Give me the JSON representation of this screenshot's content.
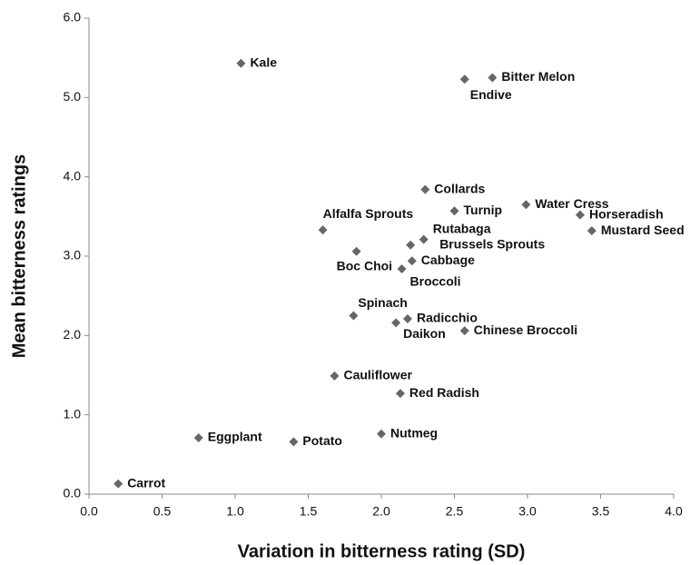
{
  "chart_data": {
    "type": "scatter",
    "xlabel": "Variation in bitterness rating (SD)",
    "ylabel": "Mean bitterness ratings",
    "labels": [
      "Kale",
      "Endive",
      "Bitter Melon",
      "Collards",
      "Water Cress",
      "Turnip",
      "Horseradish",
      "Alfalfa Sprouts",
      "Mustard Seed",
      "Rutabaga",
      "Brussels Sprouts",
      "Boc Choi",
      "Cabbage",
      "Broccoli",
      "Spinach",
      "Radicchio",
      "Daikon",
      "Chinese Broccoli",
      "Cauliflower",
      "Red Radish",
      "Nutmeg",
      "Eggplant",
      "Potato",
      "Carrot"
    ],
    "x": [
      1.04,
      2.57,
      2.76,
      2.3,
      2.99,
      2.5,
      3.36,
      1.6,
      3.44,
      2.29,
      2.2,
      1.83,
      2.21,
      2.14,
      1.81,
      2.18,
      2.1,
      2.57,
      1.68,
      2.13,
      2.0,
      0.75,
      1.4,
      0.2
    ],
    "values": [
      5.43,
      5.23,
      5.25,
      3.84,
      3.65,
      3.57,
      3.52,
      3.33,
      3.32,
      3.21,
      3.14,
      3.06,
      2.94,
      2.84,
      2.25,
      2.21,
      2.16,
      2.06,
      1.49,
      1.27,
      0.76,
      0.71,
      0.66,
      0.13
    ],
    "color": "#666666",
    "xlim": [
      0,
      4
    ],
    "ylim": [
      0,
      6
    ],
    "xticks": [
      {
        "value": 0,
        "label": "0.0"
      },
      {
        "value": 0.5,
        "label": "0.5"
      },
      {
        "value": 1,
        "label": "1.0"
      },
      {
        "value": 1.5,
        "label": "1.5"
      },
      {
        "value": 2,
        "label": "2.0"
      },
      {
        "value": 2.5,
        "label": "2.5"
      },
      {
        "value": 3,
        "label": "3.0"
      },
      {
        "value": 3.5,
        "label": "3.5"
      },
      {
        "value": 4,
        "label": "4.0"
      }
    ],
    "yticks": [
      {
        "value": 0,
        "label": "0.0"
      },
      {
        "value": 1,
        "label": "1.0"
      },
      {
        "value": 2,
        "label": "2.0"
      },
      {
        "value": 3,
        "label": "3.0"
      },
      {
        "value": 4,
        "label": "4.0"
      },
      {
        "value": 5,
        "label": "5.0"
      },
      {
        "value": 6,
        "label": "6.0"
      }
    ],
    "grid": false
  }
}
